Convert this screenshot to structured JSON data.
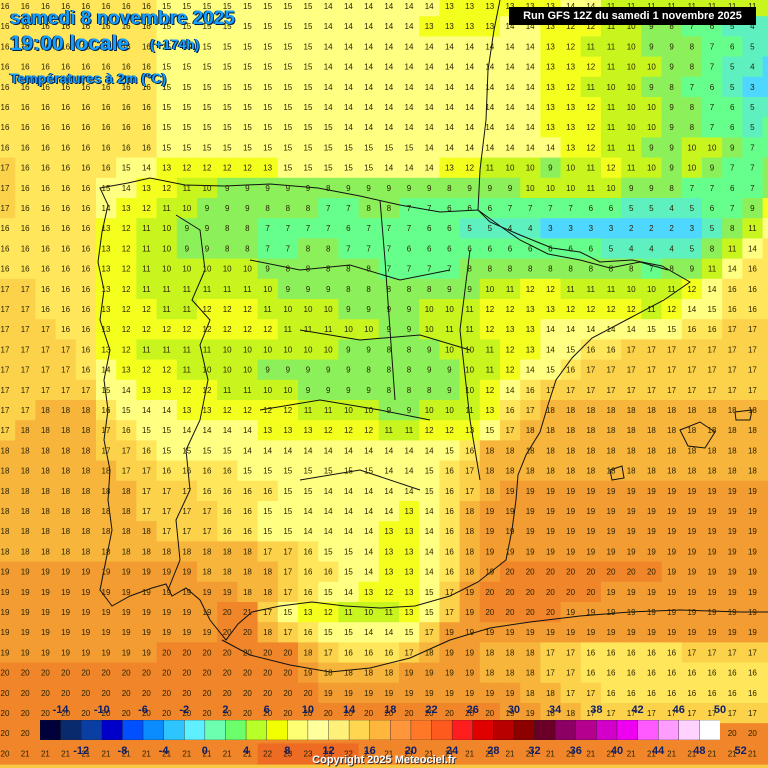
{
  "header": {
    "date_line": "samedi 8 novembre 2025",
    "time_line": "19:00 locale",
    "lead_time": "(+174h)",
    "parameter": "Températures à 2m (°C)",
    "run_info": "Run GFS 12Z du samedi 1 novembre 2025"
  },
  "map": {
    "region": "Iberian Peninsula",
    "grid_temperatures_c": [
      "16 16 16 16 16 16 16 16 15 15 15 15 15 15 15 15 14 14 14 14 14 14 13 13 13 13 13 13 14 14 11 11 11 11 11 11 11 11 11",
      "16 16 16 16 16 16 16 16 15 15 15 15 15 15 15 15 14 14 14 14 14 13 13 13 13 14 14 13 12 12 11 10 9 8 7 6 5 4 4",
      "16 16 16 16 16 16 16 16 15 15 15 15 15 15 15 15 14 14 14 14 14 14 14 14 14 14 14 13 12 11 11 10 9 9 8 7 6 5 4",
      "16 16 16 16 16 16 16 16 15 15 15 15 15 15 15 15 14 14 14 14 14 14 14 14 14 14 14 13 13 12 11 10 10 9 8 7 5 4 2",
      "16 16 16 16 16 16 16 16 15 15 15 15 15 15 15 15 14 14 14 14 14 14 14 14 14 14 14 13 12 11 10 10 9 8 7 6 5 3 1",
      "16 16 16 16 16 16 16 16 15 15 15 15 15 15 15 15 14 14 14 14 14 14 14 14 14 14 14 13 13 12 11 10 10 9 8 7 6 5 5",
      "16 16 16 16 16 16 16 16 15 15 15 15 15 15 15 15 15 14 14 14 14 14 14 14 14 14 14 13 13 12 11 10 10 9 8 7 6 5 6",
      "16 16 16 16 16 16 16 16 15 15 15 15 15 15 15 15 15 15 15 15 15 14 14 14 14 14 14 14 13 12 11 11 9 9 10 10 9 7 6",
      "17 16 16 16 16 16 15 14 13 12 12 12 12 13 15 15 15 15 15 14 14 14 13 12 11 10 10 9 10 11 12 11 10 9 10 9 7 7 9",
      "17 16 16 16 16 15 14 13 12 11 10 9 9 9 9 9 8 9 9 9 9 9 8 9 9 9 10 10 10 11 10 9 9 8 7 7 6 7 8",
      "17 16 16 16 16 14 13 12 11 10 9 9 9 8 8 8 7 7 8 8 7 7 6 6 6 7 7 7 7 6 6 5 5 4 5 6 7 9 12",
      "16 16 16 16 16 13 12 11 10 9 9 8 8 7 7 7 7 6 7 7 7 6 6 5 5 4 4 3 3 3 3 2 2 2 3 5 8 11 15",
      "16 16 16 16 16 13 12 11 10 9 9 8 8 7 7 8 8 7 7 7 6 6 6 6 6 6 6 6 6 6 5 4 4 4 5 8 11 14 16",
      "16 16 16 16 16 13 12 11 10 10 10 10 10 9 8 8 8 8 8 7 7 7 7 8 8 8 8 8 8 8 8 8 7 8 9 11 14 16 16",
      "17 17 16 16 16 13 12 11 11 11 11 11 11 10 9 9 9 8 8 8 8 8 9 9 10 11 12 12 11 11 11 10 10 11 12 14 16 16 16",
      "17 17 16 16 16 13 12 12 11 11 12 12 12 11 10 10 10 9 9 9 9 10 10 11 12 12 13 13 12 12 12 12 11 12 14 15 16 16 16",
      "17 17 17 16 16 13 12 12 12 12 12 12 12 12 11 11 11 10 10 9 9 10 11 11 12 13 13 14 14 14 14 14 15 15 16 16 17 17 17",
      "17 17 17 17 16 13 12 11 11 11 11 10 10 10 10 10 10 9 9 8 8 9 10 10 11 12 13 14 15 16 16 17 17 17 17 17 17 17 17",
      "17 17 17 17 16 14 13 12 12 11 10 10 10 9 9 9 9 9 8 8 8 9 9 10 11 12 14 15 16 17 17 17 17 17 17 17 17 17 17",
      "17 17 17 17 17 15 14 13 13 12 12 11 11 10 10 9 9 9 9 8 8 8 9 10 12 14 16 17 17 17 17 17 17 17 17 17 17 17 17",
      "17 17 18 18 18 16 15 14 14 13 13 12 12 12 12 11 11 10 10 9 9 10 10 11 13 16 17 18 18 18 18 18 18 18 18 18 18 18 18",
      "17 18 18 18 18 17 16 15 15 14 14 14 14 13 13 13 12 12 12 11 11 12 12 13 15 17 18 18 18 18 18 18 18 18 18 18 18 18 18",
      "18 18 18 18 18 17 17 16 15 15 15 15 14 14 14 14 14 14 14 14 14 14 15 16 18 18 18 18 18 18 18 18 18 18 18 18 18 18 18",
      "18 18 18 18 18 18 17 17 16 16 16 16 15 15 15 15 15 15 15 14 14 15 16 17 18 18 18 18 18 18 18 18 18 18 18 18 18 18 18",
      "18 18 18 18 18 18 18 17 17 17 16 16 16 16 15 15 14 14 14 14 14 15 16 17 18 19 19 19 19 19 19 19 19 19 19 19 19 19 19",
      "18 18 18 18 18 18 18 17 17 17 17 16 16 15 15 14 14 14 14 14 13 14 16 18 19 19 19 19 19 19 19 19 19 19 19 19 19 19 19",
      "18 18 18 18 18 18 18 18 17 17 17 16 16 15 15 14 14 14 14 13 13 14 16 18 19 19 19 19 19 19 19 19 19 19 19 19 19 19 19",
      "18 18 18 18 18 18 18 18 18 18 18 18 18 17 17 16 15 15 14 13 13 14 16 18 19 19 19 19 19 19 19 19 19 19 19 19 19 19 19",
      "19 19 19 19 19 19 19 19 19 19 18 18 18 18 17 16 16 15 14 13 13 14 16 18 19 20 20 20 20 20 20 20 20 19 19 19 19 19 19",
      "19 19 19 19 19 19 19 19 19 19 19 19 18 18 17 16 15 14 13 12 13 15 17 19 20 20 20 20 20 20 19 19 19 19 19 19 19 19 19",
      "19 19 19 19 19 19 19 19 19 19 19 20 21 17 15 13 12 11 10 11 13 15 17 19 20 20 20 20 19 19 19 19 19 19 19 19 19 19 19",
      "19 19 19 19 19 19 19 19 19 19 19 20 20 18 17 16 15 15 14 14 15 17 19 19 19 19 19 19 19 19 19 19 19 19 19 19 19 19 19",
      "19 19 19 19 19 19 19 19 20 20 20 20 20 20 20 18 17 16 16 16 17 18 19 19 18 18 18 17 17 16 16 16 16 16 17 17 17 17 17",
      "20 20 20 20 20 20 20 20 20 20 20 20 20 20 20 19 18 18 18 18 19 19 19 19 18 18 18 17 17 16 16 16 16 16 16 16 16 16 16",
      "20 20 20 20 20 20 20 20 20 20 20 20 20 20 20 20 19 19 19 19 19 19 19 19 19 19 18 18 17 17 16 16 16 16 16 16 16 16 16",
      "20 20 20 20 20 20 20 20 20 20 20 20 20 20 20 20 20 20 20 20 20 20 20 20 20 19 19 18 18 17 17 17 17 17 17 17 17 17 17",
      "20 20 20 20 20 20 20 20 20 20 20 20 20 20 20 20 20 20 20 20 20 20 20 20 20 20 20 20 20 20 20 20 20 20 20 20 20 20 20",
      "20 21 21 21 21 21 21 21 21 21 21 21 21 22 23 23 23 22 21 21 21 21 21 21 21 21 21 21 21 21 21 21 21 21 21 21 21 21 21"
    ]
  },
  "legend": {
    "top_labels": [
      "-14",
      "-10",
      "-6",
      "-2",
      "2",
      "6",
      "10",
      "14",
      "18",
      "22",
      "26",
      "30",
      "34",
      "38",
      "42",
      "46",
      "50"
    ],
    "bottom_labels": [
      "-12",
      "-8",
      "-4",
      "0",
      "4",
      "8",
      "12",
      "16",
      "20",
      "24",
      "28",
      "32",
      "36",
      "40",
      "44",
      "48",
      "52"
    ],
    "colors": [
      "#00003a",
      "#0a2a6e",
      "#0b3ea3",
      "#0000c8",
      "#0050ff",
      "#0a8cff",
      "#2ec5ff",
      "#5ff0ff",
      "#6dffb0",
      "#6bff6b",
      "#b8ff2a",
      "#f2ff00",
      "#ffff73",
      "#ffff9c",
      "#fff07a",
      "#ffd650",
      "#ffb63c",
      "#ff963c",
      "#ff7828",
      "#ff5a1e",
      "#ff1e1e",
      "#e00000",
      "#b80000",
      "#8c0000",
      "#6a0028",
      "#8c0064",
      "#b4008c",
      "#d200c8",
      "#f000f0",
      "#ff5aff",
      "#ff9cff",
      "#ffd2ff",
      "#ffffff"
    ]
  },
  "footer": {
    "copyright": "Copyright 2025 Meteociel.fr"
  }
}
